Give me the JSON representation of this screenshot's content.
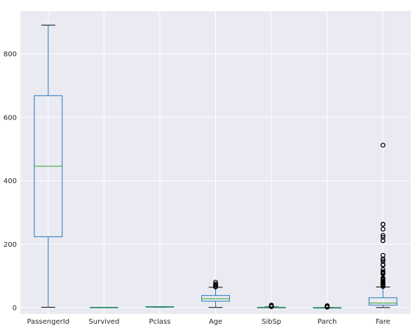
{
  "chart_data": {
    "type": "box",
    "categories": [
      "PassengerId",
      "Survived",
      "Pclass",
      "Age",
      "SibSp",
      "Parch",
      "Fare"
    ],
    "ylim": [
      -20,
      935
    ],
    "yticks": [
      0,
      200,
      400,
      600,
      800
    ],
    "ytick_labels": [
      "0",
      "200",
      "400",
      "600",
      "800"
    ],
    "grid": true,
    "boxes": [
      {
        "name": "PassengerId",
        "whislo": 1,
        "q1": 223.5,
        "med": 446,
        "q3": 668.5,
        "whishi": 891,
        "fliers": []
      },
      {
        "name": "Survived",
        "whislo": 0,
        "q1": 0,
        "med": 0,
        "q3": 1,
        "whishi": 1,
        "fliers": []
      },
      {
        "name": "Pclass",
        "whislo": 1,
        "q1": 2,
        "med": 3,
        "q3": 3,
        "whishi": 3,
        "fliers": []
      },
      {
        "name": "Age",
        "whislo": 0.42,
        "q1": 20.1,
        "med": 28,
        "q3": 38,
        "whishi": 64,
        "fliers": [
          65,
          66,
          70,
          70.5,
          71,
          74,
          80
        ]
      },
      {
        "name": "SibSp",
        "whislo": 0,
        "q1": 0,
        "med": 0,
        "q3": 1,
        "whishi": 2,
        "fliers": [
          3,
          4,
          5,
          8
        ]
      },
      {
        "name": "Parch",
        "whislo": 0,
        "q1": 0,
        "med": 0,
        "q3": 0,
        "whishi": 0,
        "fliers": [
          1,
          2,
          3,
          4,
          5,
          6
        ]
      },
      {
        "name": "Fare",
        "whislo": 0,
        "q1": 7.9,
        "med": 14.45,
        "q3": 31,
        "whishi": 65,
        "fliers": [
          66.6,
          69.55,
          71.28,
          73.5,
          76.73,
          77.96,
          79.2,
          79.65,
          82.17,
          83.16,
          86.5,
          89.1,
          90,
          91.08,
          93.5,
          106.43,
          108.9,
          110.88,
          113.28,
          120,
          133.65,
          134.5,
          135.63,
          146.52,
          151.55,
          153.46,
          164.87,
          211.34,
          211.5,
          221.78,
          227.53,
          247.52,
          262.38,
          263,
          512.33
        ]
      }
    ],
    "colors": {
      "background": "#eaeaf2",
      "grid": "#ffffff",
      "box": "#1f77b4",
      "median": "#2ca02c",
      "whisker": "#1f77b4",
      "cap": "#000000",
      "flier": "#000000"
    }
  }
}
